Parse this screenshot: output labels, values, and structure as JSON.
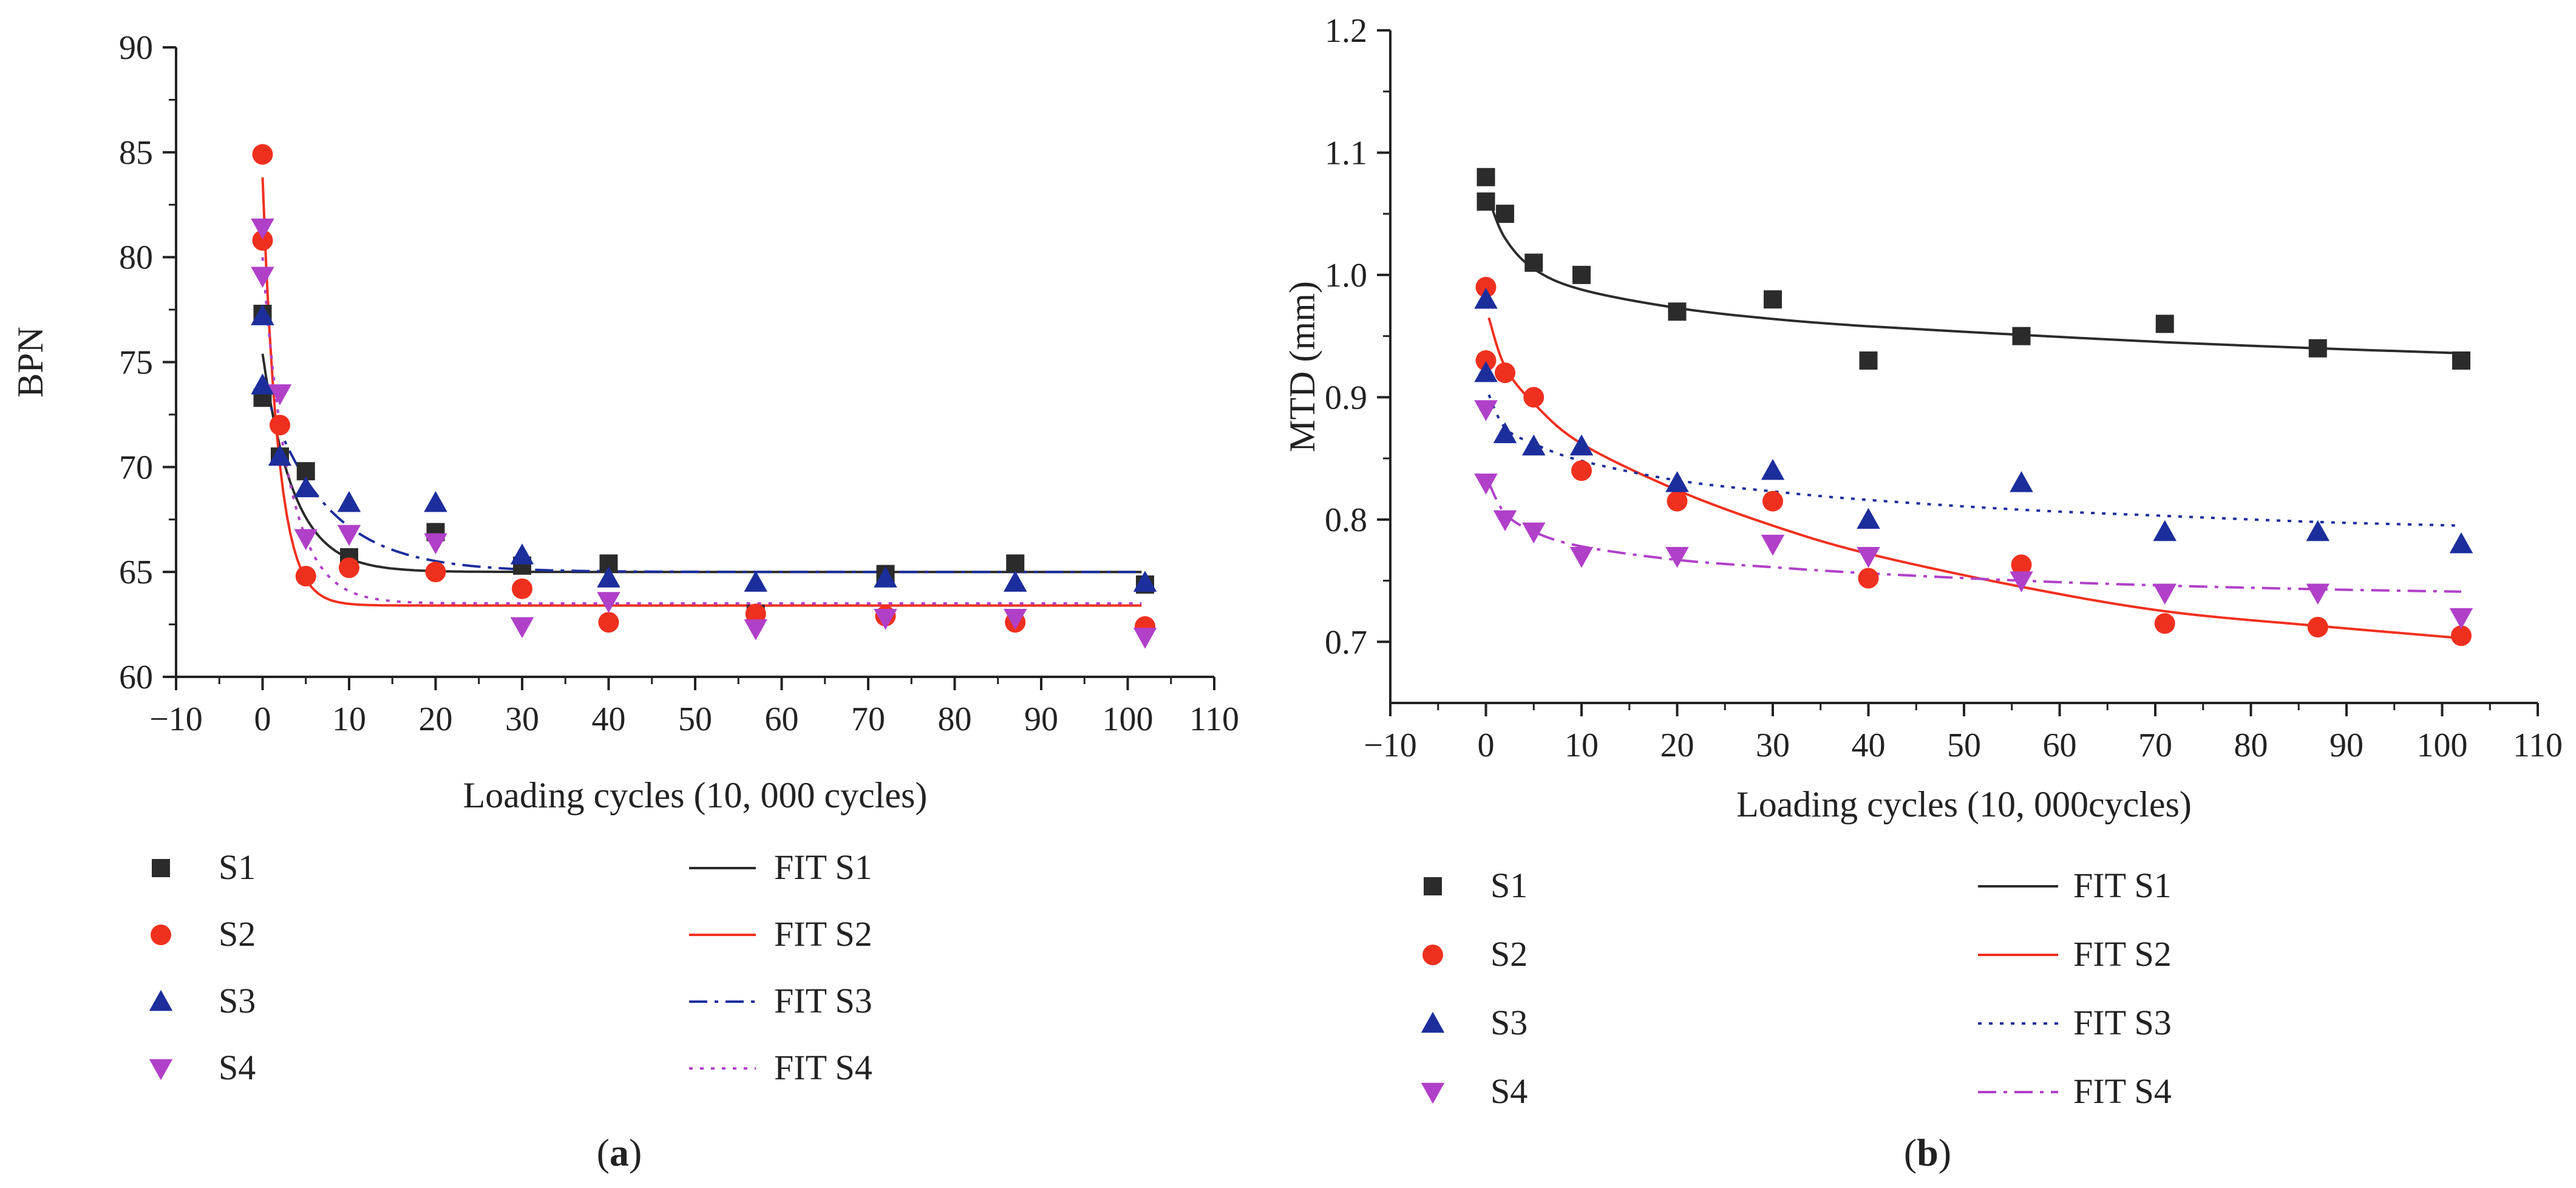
{
  "chart_data": [
    {
      "type": "scatter",
      "panel_label": "(a)",
      "xlabel": "Loading cycles (10, 000 cycles)",
      "ylabel": "BPN",
      "xlim": [
        -10,
        110
      ],
      "ylim": [
        60,
        90
      ],
      "xticks": [
        -10,
        0,
        10,
        20,
        30,
        40,
        50,
        60,
        70,
        80,
        90,
        100,
        110
      ],
      "yticks": [
        60,
        65,
        70,
        75,
        80,
        85,
        90
      ],
      "grid": false,
      "legend_position": "bottom",
      "colors": {
        "S1": "#2b2b2b",
        "S2": "#f0301e",
        "S3": "#1c2e9c",
        "S4": "#b040c8"
      },
      "series": [
        {
          "name": "S1",
          "marker": "square",
          "points": [
            [
              0,
              77.3
            ],
            [
              0,
              73.3
            ],
            [
              2,
              70.5
            ],
            [
              5,
              69.8
            ],
            [
              10,
              65.7
            ],
            [
              20,
              66.9
            ],
            [
              30,
              65.3
            ],
            [
              40,
              65.4
            ],
            [
              57,
              63.0
            ],
            [
              72,
              64.9
            ],
            [
              87,
              65.4
            ],
            [
              102,
              64.4
            ]
          ]
        },
        {
          "name": "S2",
          "marker": "circle",
          "points": [
            [
              0,
              84.9
            ],
            [
              0,
              80.8
            ],
            [
              2,
              72.0
            ],
            [
              5,
              64.8
            ],
            [
              10,
              65.2
            ],
            [
              20,
              65.0
            ],
            [
              30,
              64.2
            ],
            [
              40,
              62.6
            ],
            [
              57,
              63.0
            ],
            [
              72,
              62.9
            ],
            [
              87,
              62.6
            ],
            [
              102,
              62.4
            ]
          ]
        },
        {
          "name": "S3",
          "marker": "triangle-up",
          "points": [
            [
              0,
              77.2
            ],
            [
              0,
              73.9
            ],
            [
              2,
              70.5
            ],
            [
              5,
              69.0
            ],
            [
              10,
              68.3
            ],
            [
              20,
              68.3
            ],
            [
              30,
              65.8
            ],
            [
              40,
              64.7
            ],
            [
              57,
              64.5
            ],
            [
              72,
              64.7
            ],
            [
              87,
              64.5
            ],
            [
              102,
              64.5
            ]
          ]
        },
        {
          "name": "S4",
          "marker": "triangle-down",
          "points": [
            [
              0,
              81.4
            ],
            [
              0,
              79.1
            ],
            [
              2,
              73.5
            ],
            [
              5,
              66.6
            ],
            [
              10,
              66.8
            ],
            [
              20,
              66.4
            ],
            [
              30,
              62.4
            ],
            [
              40,
              63.6
            ],
            [
              57,
              62.3
            ],
            [
              72,
              62.8
            ],
            [
              87,
              62.8
            ],
            [
              102,
              61.9
            ]
          ]
        }
      ],
      "fits": [
        {
          "name": "FIT S1",
          "style": "solid",
          "y0": 75.4,
          "yinf": 65.0,
          "tau": 3.6
        },
        {
          "name": "FIT S2",
          "style": "solid",
          "y0": 83.8,
          "yinf": 63.4,
          "tau": 1.8
        },
        {
          "name": "FIT S3",
          "style": "dashdot",
          "y0": 74.0,
          "yinf": 65.0,
          "tau": 7.0
        },
        {
          "name": "FIT S4",
          "style": "dotted",
          "y0": 80.0,
          "yinf": 63.5,
          "tau": 3.0
        }
      ]
    },
    {
      "type": "scatter",
      "panel_label": "(b)",
      "xlabel": "Loading cycles (10, 000cycles)",
      "ylabel": "MTD (mm)",
      "xlim": [
        -10,
        110
      ],
      "ylim": [
        0.65,
        1.2
      ],
      "xticks": [
        -10,
        0,
        10,
        20,
        30,
        40,
        50,
        60,
        70,
        80,
        90,
        100,
        110
      ],
      "yticks": [
        0.7,
        0.8,
        0.9,
        1.0,
        1.1,
        1.2
      ],
      "ytick_labels": [
        "0.7",
        "0.8",
        "0.9",
        "1.0",
        "1.1",
        "1.2"
      ],
      "grid": false,
      "legend_position": "bottom",
      "colors": {
        "S1": "#2b2b2b",
        "S2": "#f0301e",
        "S3": "#1c2e9c",
        "S4": "#b040c8"
      },
      "series": [
        {
          "name": "S1",
          "marker": "square",
          "points": [
            [
              0,
              1.08
            ],
            [
              0,
              1.06
            ],
            [
              2,
              1.05
            ],
            [
              5,
              1.01
            ],
            [
              10,
              1.0
            ],
            [
              20,
              0.97
            ],
            [
              30,
              0.98
            ],
            [
              40,
              0.93
            ],
            [
              56,
              0.95
            ],
            [
              71,
              0.96
            ],
            [
              87,
              0.94
            ],
            [
              102,
              0.93
            ]
          ]
        },
        {
          "name": "S2",
          "marker": "circle",
          "points": [
            [
              0,
              0.99
            ],
            [
              0,
              0.93
            ],
            [
              2,
              0.92
            ],
            [
              5,
              0.9
            ],
            [
              10,
              0.84
            ],
            [
              20,
              0.815
            ],
            [
              30,
              0.815
            ],
            [
              40,
              0.752
            ],
            [
              56,
              0.763
            ],
            [
              71,
              0.715
            ],
            [
              87,
              0.712
            ],
            [
              102,
              0.705
            ]
          ]
        },
        {
          "name": "S3",
          "marker": "triangle-up",
          "points": [
            [
              0,
              0.98
            ],
            [
              0,
              0.92
            ],
            [
              2,
              0.87
            ],
            [
              5,
              0.86
            ],
            [
              10,
              0.86
            ],
            [
              20,
              0.83
            ],
            [
              30,
              0.84
            ],
            [
              40,
              0.8
            ],
            [
              56,
              0.83
            ],
            [
              71,
              0.79
            ],
            [
              87,
              0.79
            ],
            [
              102,
              0.78
            ]
          ]
        },
        {
          "name": "S4",
          "marker": "triangle-down",
          "points": [
            [
              0,
              0.89
            ],
            [
              0,
              0.83
            ],
            [
              2,
              0.8
            ],
            [
              5,
              0.79
            ],
            [
              10,
              0.77
            ],
            [
              20,
              0.77
            ],
            [
              30,
              0.78
            ],
            [
              40,
              0.77
            ],
            [
              56,
              0.75
            ],
            [
              71,
              0.74
            ],
            [
              87,
              0.74
            ],
            [
              102,
              0.72
            ]
          ]
        }
      ],
      "fits": [
        {
          "name": "FIT S1",
          "style": "solid",
          "points": [
            [
              0.3,
              1.062
            ],
            [
              2,
              1.03
            ],
            [
              5,
              1.005
            ],
            [
              10,
              0.988
            ],
            [
              20,
              0.973
            ],
            [
              30,
              0.964
            ],
            [
              40,
              0.958
            ],
            [
              56,
              0.951
            ],
            [
              71,
              0.945
            ],
            [
              87,
              0.94
            ],
            [
              102,
              0.936
            ]
          ]
        },
        {
          "name": "FIT S2",
          "style": "solid",
          "points": [
            [
              0.3,
              0.965
            ],
            [
              2,
              0.925
            ],
            [
              5,
              0.895
            ],
            [
              10,
              0.862
            ],
            [
              20,
              0.824
            ],
            [
              30,
              0.795
            ],
            [
              40,
              0.772
            ],
            [
              56,
              0.745
            ],
            [
              71,
              0.725
            ],
            [
              87,
              0.713
            ],
            [
              102,
              0.703
            ]
          ]
        },
        {
          "name": "FIT S3",
          "style": "dotted",
          "points": [
            [
              0.3,
              0.902
            ],
            [
              2,
              0.875
            ],
            [
              5,
              0.862
            ],
            [
              10,
              0.848
            ],
            [
              20,
              0.832
            ],
            [
              30,
              0.823
            ],
            [
              40,
              0.816
            ],
            [
              56,
              0.808
            ],
            [
              71,
              0.803
            ],
            [
              87,
              0.798
            ],
            [
              102,
              0.795
            ]
          ]
        },
        {
          "name": "FIT S4",
          "style": "dashdot",
          "points": [
            [
              0.3,
              0.83
            ],
            [
              2,
              0.805
            ],
            [
              5,
              0.79
            ],
            [
              10,
              0.778
            ],
            [
              20,
              0.767
            ],
            [
              30,
              0.761
            ],
            [
              40,
              0.756
            ],
            [
              56,
              0.75
            ],
            [
              71,
              0.746
            ],
            [
              87,
              0.743
            ],
            [
              102,
              0.741
            ]
          ]
        }
      ]
    }
  ]
}
